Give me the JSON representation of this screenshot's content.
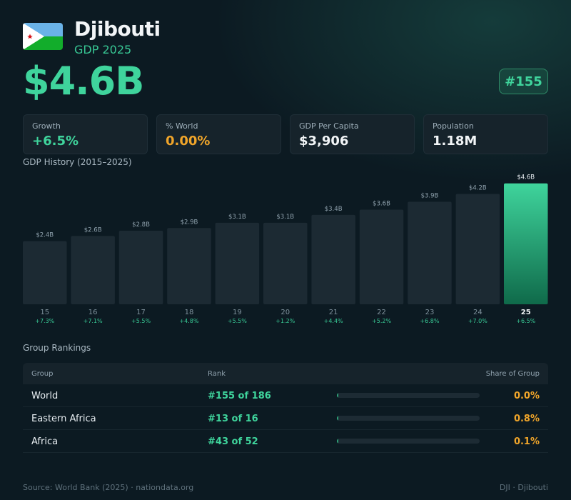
{
  "header": {
    "country": "Djibouti",
    "subtitle": "GDP 2025",
    "gdp": "$4.6B",
    "rank_badge": "#155",
    "flag_icon": "djibouti-flag"
  },
  "stats": [
    {
      "label": "Growth",
      "value": "+6.5%",
      "color": "#3fd49c"
    },
    {
      "label": "% World",
      "value": "0.00%",
      "color": "#f0a52a"
    },
    {
      "label": "GDP Per Capita",
      "value": "$3,906",
      "color": "#f2f5f7"
    },
    {
      "label": "Population",
      "value": "1.18M",
      "color": "#f2f5f7"
    }
  ],
  "chart_title": "GDP History (2015–2025)",
  "chart_data": {
    "type": "bar",
    "title": "GDP History (2015–2025)",
    "categories": [
      "15",
      "16",
      "17",
      "18",
      "19",
      "20",
      "21",
      "22",
      "23",
      "24",
      "25"
    ],
    "values": [
      2.4,
      2.6,
      2.8,
      2.9,
      3.1,
      3.1,
      3.4,
      3.6,
      3.9,
      4.2,
      4.6
    ],
    "value_labels": [
      "$2.4B",
      "$2.6B",
      "$2.8B",
      "$2.9B",
      "$3.1B",
      "$3.1B",
      "$3.4B",
      "$3.6B",
      "$3.9B",
      "$4.2B",
      "$4.6B"
    ],
    "growth_labels": [
      "+7.3%",
      "+7.1%",
      "+5.5%",
      "+4.8%",
      "+5.5%",
      "+1.2%",
      "+4.4%",
      "+5.2%",
      "+6.8%",
      "+7.0%",
      "+6.5%"
    ],
    "highlight_index": 10,
    "colors": {
      "bar": "#1c2a33",
      "highlight_top": "#3fd49c",
      "highlight_bottom": "#0f6a4a"
    }
  },
  "rankings": {
    "title": "Group Rankings",
    "headers": {
      "group": "Group",
      "rank": "Rank",
      "share": "Share of Group"
    },
    "rows": [
      {
        "group": "World",
        "rank": "#155 of 186",
        "share": "0.0%",
        "share_value": 0.0
      },
      {
        "group": "Eastern Africa",
        "rank": "#13 of 16",
        "share": "0.8%",
        "share_value": 0.8
      },
      {
        "group": "Africa",
        "rank": "#43 of 52",
        "share": "0.1%",
        "share_value": 0.1
      }
    ]
  },
  "footer": {
    "source": "Source: World Bank (2025) · nationdata.org",
    "code": "DJI · Djibouti"
  }
}
